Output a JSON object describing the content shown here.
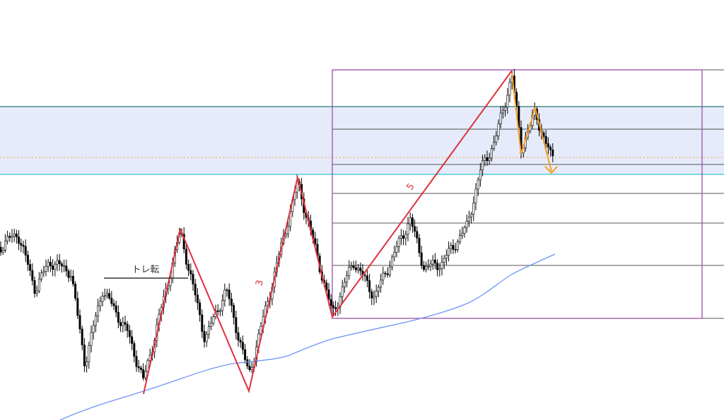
{
  "annotations": {
    "trend_reversal": "トレ転",
    "wave_3": "3",
    "wave_5": "5"
  }
}
